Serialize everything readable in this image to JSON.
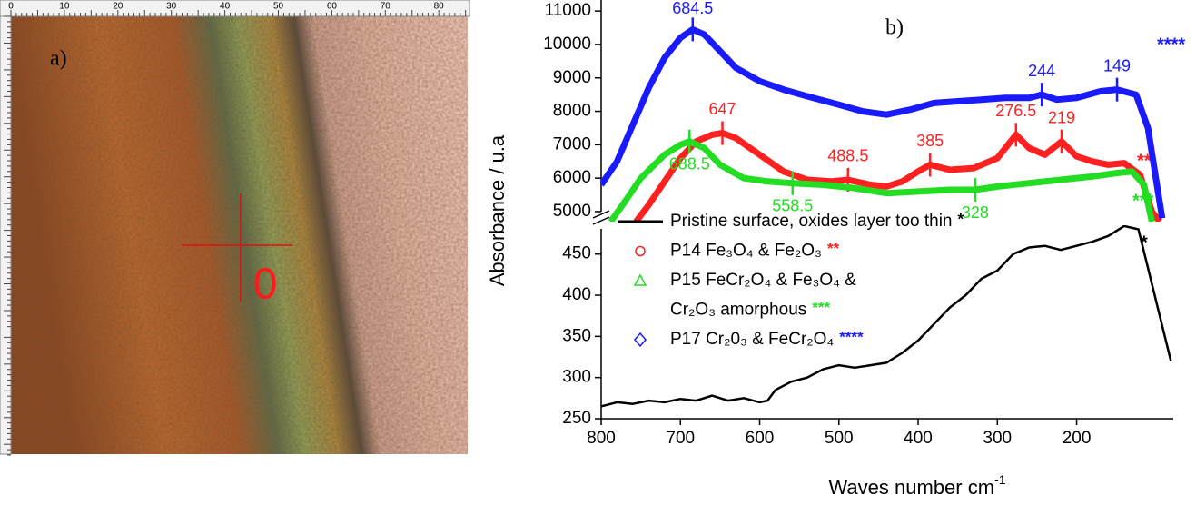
{
  "panel_a": {
    "label": "a)",
    "ruler_labels": [
      0,
      10,
      20,
      30,
      40,
      50,
      60,
      70,
      80
    ],
    "marker": "0"
  },
  "chart_data": [
    {
      "type": "line",
      "label": "b)",
      "xlim": [
        800,
        78
      ],
      "ylim": [
        4700,
        11330
      ],
      "yticks": [
        5000,
        6000,
        7000,
        8000,
        9000,
        10000,
        11000
      ],
      "series": [
        {
          "name": "P14 Fe₃O₄ & Fe₂O₃",
          "marker_label": "**",
          "marker": "circle",
          "color": "#ff2020",
          "peak_labels": "above",
          "x": [
            756,
            740,
            720,
            700,
            680,
            660,
            647,
            630,
            600,
            570,
            540,
            510,
            488.5,
            460,
            440,
            420,
            400,
            385,
            360,
            330,
            300,
            276.5,
            260,
            240,
            219,
            200,
            180,
            160,
            140,
            120,
            105,
            95
          ],
          "values": [
            4700,
            5200,
            5900,
            6600,
            7100,
            7300,
            7350,
            7200,
            6700,
            6200,
            5950,
            5900,
            5950,
            5800,
            5750,
            5900,
            6200,
            6400,
            6250,
            6300,
            6600,
            7300,
            6900,
            6700,
            7100,
            6650,
            6500,
            6400,
            6450,
            6100,
            5000,
            4700
          ],
          "peaks": [
            647,
            488.5,
            385,
            276.5,
            219
          ]
        },
        {
          "name": [
            "P15 FeCr₂O₄ & Fe₃O₄ &",
            "Cr₂O₃ amorphous"
          ],
          "marker_label": "***",
          "marker": "triangle",
          "color": "#22dd22",
          "peak_labels": "below",
          "x": [
            788,
            770,
            750,
            720,
            700,
            688.5,
            670,
            650,
            620,
            590,
            558.5,
            520,
            480,
            440,
            400,
            360,
            328,
            300,
            260,
            220,
            180,
            150,
            130,
            115,
            105
          ],
          "values": [
            4700,
            5300,
            6000,
            6700,
            7000,
            7100,
            6900,
            6400,
            6000,
            5900,
            5850,
            5800,
            5700,
            5550,
            5600,
            5650,
            5650,
            5750,
            5850,
            5950,
            6050,
            6150,
            6200,
            5800,
            4700
          ],
          "peaks": [
            688.5,
            558.5,
            328
          ]
        },
        {
          "name": "P17 Cr₂0₃ & FeCr₂O₄",
          "marker_label": "****",
          "marker": "diamond",
          "color": "#1a1aff",
          "peak_labels": "above",
          "x": [
            800,
            780,
            760,
            740,
            720,
            700,
            684.5,
            670,
            650,
            630,
            600,
            570,
            540,
            500,
            470,
            440,
            410,
            380,
            350,
            320,
            290,
            260,
            244,
            225,
            200,
            170,
            149,
            125,
            110,
            100,
            92
          ],
          "values": [
            5800,
            6500,
            7600,
            8700,
            9600,
            10200,
            10450,
            10300,
            9800,
            9300,
            8900,
            8650,
            8450,
            8200,
            8000,
            7900,
            8050,
            8250,
            8300,
            8350,
            8400,
            8400,
            8500,
            8350,
            8400,
            8600,
            8650,
            8500,
            7500,
            6000,
            4800
          ],
          "peaks": [
            684.5,
            244,
            149
          ]
        }
      ]
    },
    {
      "type": "line",
      "xlim": [
        800,
        78
      ],
      "ylim": [
        250,
        485
      ],
      "xticks": [
        800,
        700,
        600,
        500,
        400,
        300,
        200
      ],
      "yticks": [
        250,
        300,
        350,
        400,
        450
      ],
      "x_label": {
        "text": "Waves number cm",
        "sup": "-1"
      },
      "y_label": "Absorbance / u.a",
      "legend": "upper left",
      "series": [
        {
          "name": "Pristine surface, oxides layer too thin",
          "marker_label": "*",
          "marker": "line",
          "color": "#000000",
          "x": [
            800,
            780,
            760,
            740,
            720,
            700,
            680,
            660,
            640,
            620,
            600,
            590,
            580,
            560,
            540,
            520,
            500,
            480,
            460,
            440,
            420,
            400,
            380,
            360,
            340,
            320,
            300,
            280,
            260,
            240,
            220,
            200,
            180,
            160,
            150,
            140,
            122,
            81
          ],
          "values": [
            265,
            270,
            268,
            272,
            270,
            274,
            272,
            278,
            272,
            275,
            270,
            272,
            285,
            295,
            300,
            310,
            315,
            312,
            315,
            318,
            330,
            345,
            365,
            385,
            400,
            420,
            430,
            450,
            458,
            460,
            455,
            460,
            465,
            472,
            478,
            484,
            480,
            320
          ]
        }
      ]
    }
  ]
}
